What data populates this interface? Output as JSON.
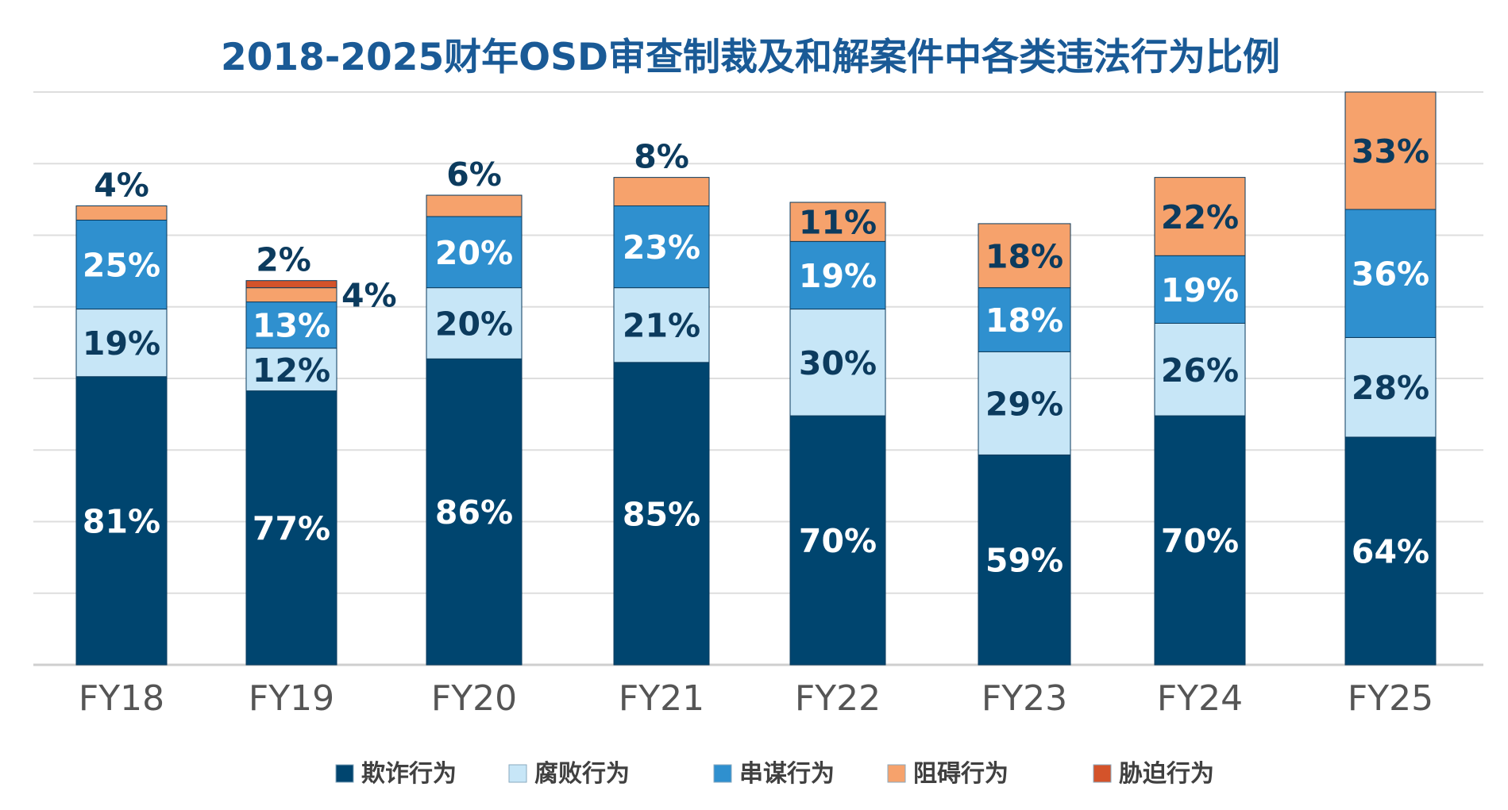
{
  "chart_data": {
    "type": "bar",
    "stacked": true,
    "title": "2018-2025财年OSD审查制裁及和解案件中各类违法行为比例",
    "categories": [
      "FY18",
      "FY19",
      "FY20",
      "FY21",
      "FY22",
      "FY23",
      "FY24",
      "FY25"
    ],
    "series": [
      {
        "name": "欺诈行为",
        "color": "#00456f",
        "label_color": "#ffffff",
        "values": [
          81,
          77,
          86,
          85,
          70,
          59,
          70,
          64
        ]
      },
      {
        "name": "腐败行为",
        "color": "#c7e6f7",
        "label_color": "#0c3b5e",
        "values": [
          19,
          12,
          20,
          21,
          30,
          29,
          26,
          28
        ]
      },
      {
        "name": "串谋行为",
        "color": "#2f90cf",
        "label_color": "#ffffff",
        "values": [
          25,
          13,
          20,
          23,
          19,
          18,
          19,
          36
        ]
      },
      {
        "name": "阻碍行为",
        "color": "#f6a26c",
        "label_color": "#0c3b5e",
        "values": [
          4,
          4,
          6,
          8,
          11,
          18,
          22,
          33
        ]
      },
      {
        "name": "胁迫行为",
        "color": "#d4532a",
        "label_color": "#0c3b5e",
        "values": [
          0,
          2,
          0,
          0,
          0,
          0,
          0,
          0
        ]
      }
    ],
    "value_labels": [
      [
        "81%",
        "19%",
        "25%",
        "4%",
        ""
      ],
      [
        "77%",
        "12%",
        "13%",
        "4%",
        "2%"
      ],
      [
        "86%",
        "20%",
        "20%",
        "6%",
        ""
      ],
      [
        "85%",
        "21%",
        "23%",
        "8%",
        ""
      ],
      [
        "70%",
        "30%",
        "19%",
        "11%",
        ""
      ],
      [
        "59%",
        "29%",
        "18%",
        "18%",
        ""
      ],
      [
        "70%",
        "26%",
        "19%",
        "22%",
        ""
      ],
      [
        "64%",
        "28%",
        "36%",
        "33%",
        ""
      ]
    ],
    "ylim": [
      0,
      161
    ],
    "grid": true,
    "legend_position": "bottom",
    "xlabel": "",
    "ylabel": ""
  }
}
